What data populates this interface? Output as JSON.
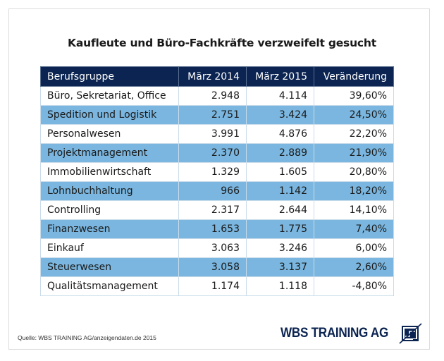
{
  "chart_data": {
    "type": "table",
    "title": "Kaufleute und Büro-Fachkräfte verzweifelt gesucht",
    "columns": [
      "Berufsgruppe",
      "März 2014",
      "März 2015",
      "Veränderung"
    ],
    "rows": [
      [
        "Büro, Sekretariat, Office",
        "2.948",
        "4.114",
        "39,60%"
      ],
      [
        "Spedition und Logistik",
        "2.751",
        "3.424",
        "24,50%"
      ],
      [
        "Personalwesen",
        "3.991",
        "4.876",
        "22,20%"
      ],
      [
        "Projektmanagement",
        "2.370",
        "2.889",
        "21,90%"
      ],
      [
        "Immobilienwirtschaft",
        "1.329",
        "1.605",
        "20,80%"
      ],
      [
        "Lohnbuchhaltung",
        "966",
        "1.142",
        "18,20%"
      ],
      [
        "Controlling",
        "2.317",
        "2.644",
        "14,10%"
      ],
      [
        "Finanzwesen",
        "1.653",
        "1.775",
        "7,40%"
      ],
      [
        "Einkauf",
        "3.063",
        "3.246",
        "6,00%"
      ],
      [
        "Steuerwesen",
        "3.058",
        "3.137",
        "2,60%"
      ],
      [
        "Qualitätsmanagement",
        "1.174",
        "1.118",
        "-4,80%"
      ]
    ],
    "values": {
      "maerz_2014": [
        2948,
        2751,
        3991,
        2370,
        1329,
        966,
        2317,
        1653,
        3063,
        3058,
        1174
      ],
      "maerz_2015": [
        4114,
        3424,
        4876,
        2889,
        1605,
        1142,
        2644,
        1775,
        3246,
        3137,
        1118
      ],
      "veraenderung_pct": [
        39.6,
        24.5,
        22.2,
        21.9,
        20.8,
        18.2,
        14.1,
        7.4,
        6.0,
        2.6,
        -4.8
      ]
    }
  },
  "colors": {
    "header_bg": "#0b2451",
    "alt_row_bg": "#7ab6df",
    "brand": "#0b2451"
  },
  "footer": {
    "source": "Quelle: WBS TRAINING AG/anzeigendaten.de 2015",
    "logo_text": "WBS TRAINING AG",
    "logo_icon": "wbs-logo-icon"
  }
}
